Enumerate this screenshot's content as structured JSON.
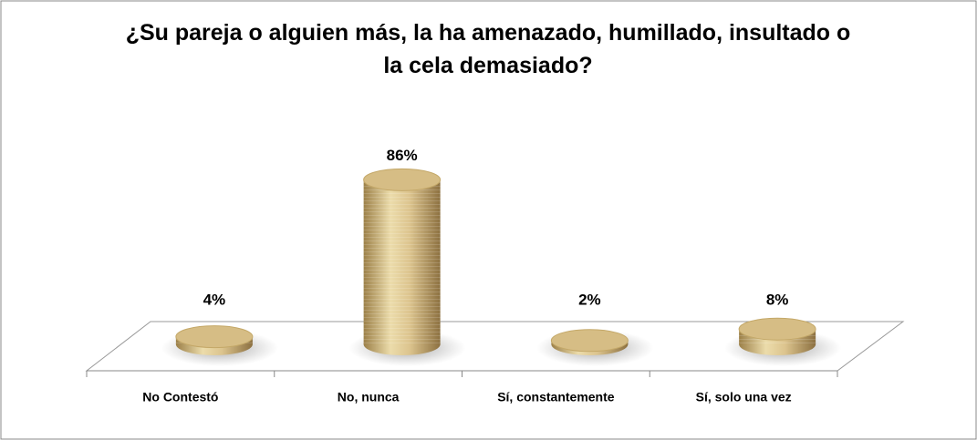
{
  "chart_data": {
    "type": "cylinder",
    "title": "¿Su pareja o alguien más, la ha amenazado, humillado, insultado o la cela demasiado?",
    "categories": [
      "No Contestó",
      "No, nunca",
      "Sí, constantemente",
      "Sí, solo una vez"
    ],
    "values": [
      4,
      86,
      2,
      8
    ],
    "value_labels": [
      "4%",
      "86%",
      "2%",
      "8%"
    ],
    "color": "#d6bd85"
  }
}
